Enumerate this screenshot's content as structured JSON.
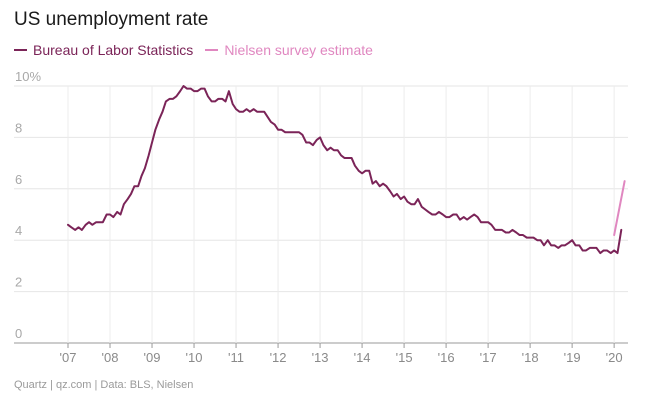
{
  "chart_data": {
    "type": "line",
    "title": "US unemployment rate",
    "y_unit_suffix": "%",
    "ylim": [
      0,
      10
    ],
    "y_ticks": [
      0,
      2,
      4,
      6,
      8,
      10
    ],
    "y_tick_labels": [
      "0",
      "2",
      "4",
      "6",
      "8",
      "10%"
    ],
    "x_range": [
      2006.5,
      2020.33
    ],
    "x_tick_values": [
      2007,
      2008,
      2009,
      2010,
      2011,
      2012,
      2013,
      2014,
      2015,
      2016,
      2017,
      2018,
      2019,
      2020
    ],
    "x_tick_labels": [
      "'07",
      "'08",
      "'09",
      "'10",
      "'11",
      "'12",
      "'13",
      "'14",
      "'15",
      "'16",
      "'17",
      "'18",
      "'19",
      "'20"
    ],
    "grid": true,
    "legend_position": "top-left",
    "series": [
      {
        "name": "Bureau of Labor Statistics",
        "color": "#7b2458",
        "points": [
          [
            2007.0,
            4.6
          ],
          [
            2007.08,
            4.5
          ],
          [
            2007.17,
            4.4
          ],
          [
            2007.25,
            4.5
          ],
          [
            2007.33,
            4.4
          ],
          [
            2007.42,
            4.6
          ],
          [
            2007.5,
            4.7
          ],
          [
            2007.58,
            4.6
          ],
          [
            2007.67,
            4.7
          ],
          [
            2007.75,
            4.7
          ],
          [
            2007.83,
            4.7
          ],
          [
            2007.92,
            5.0
          ],
          [
            2008.0,
            5.0
          ],
          [
            2008.08,
            4.9
          ],
          [
            2008.17,
            5.1
          ],
          [
            2008.25,
            5.0
          ],
          [
            2008.33,
            5.4
          ],
          [
            2008.42,
            5.6
          ],
          [
            2008.5,
            5.8
          ],
          [
            2008.58,
            6.1
          ],
          [
            2008.67,
            6.1
          ],
          [
            2008.75,
            6.5
          ],
          [
            2008.83,
            6.8
          ],
          [
            2008.92,
            7.3
          ],
          [
            2009.0,
            7.8
          ],
          [
            2009.08,
            8.3
          ],
          [
            2009.17,
            8.7
          ],
          [
            2009.25,
            9.0
          ],
          [
            2009.33,
            9.4
          ],
          [
            2009.42,
            9.5
          ],
          [
            2009.5,
            9.5
          ],
          [
            2009.58,
            9.6
          ],
          [
            2009.67,
            9.8
          ],
          [
            2009.75,
            10.0
          ],
          [
            2009.83,
            9.9
          ],
          [
            2009.92,
            9.9
          ],
          [
            2010.0,
            9.8
          ],
          [
            2010.08,
            9.8
          ],
          [
            2010.17,
            9.9
          ],
          [
            2010.25,
            9.9
          ],
          [
            2010.33,
            9.6
          ],
          [
            2010.42,
            9.4
          ],
          [
            2010.5,
            9.4
          ],
          [
            2010.58,
            9.5
          ],
          [
            2010.67,
            9.5
          ],
          [
            2010.75,
            9.4
          ],
          [
            2010.83,
            9.8
          ],
          [
            2010.92,
            9.3
          ],
          [
            2011.0,
            9.1
          ],
          [
            2011.08,
            9.0
          ],
          [
            2011.17,
            9.0
          ],
          [
            2011.25,
            9.1
          ],
          [
            2011.33,
            9.0
          ],
          [
            2011.42,
            9.1
          ],
          [
            2011.5,
            9.0
          ],
          [
            2011.58,
            9.0
          ],
          [
            2011.67,
            9.0
          ],
          [
            2011.75,
            8.8
          ],
          [
            2011.83,
            8.6
          ],
          [
            2011.92,
            8.5
          ],
          [
            2012.0,
            8.3
          ],
          [
            2012.08,
            8.3
          ],
          [
            2012.17,
            8.2
          ],
          [
            2012.25,
            8.2
          ],
          [
            2012.33,
            8.2
          ],
          [
            2012.42,
            8.2
          ],
          [
            2012.5,
            8.2
          ],
          [
            2012.58,
            8.1
          ],
          [
            2012.67,
            7.8
          ],
          [
            2012.75,
            7.8
          ],
          [
            2012.83,
            7.7
          ],
          [
            2012.92,
            7.9
          ],
          [
            2013.0,
            8.0
          ],
          [
            2013.08,
            7.7
          ],
          [
            2013.17,
            7.5
          ],
          [
            2013.25,
            7.6
          ],
          [
            2013.33,
            7.5
          ],
          [
            2013.42,
            7.5
          ],
          [
            2013.5,
            7.3
          ],
          [
            2013.58,
            7.2
          ],
          [
            2013.67,
            7.2
          ],
          [
            2013.75,
            7.2
          ],
          [
            2013.83,
            6.9
          ],
          [
            2013.92,
            6.7
          ],
          [
            2014.0,
            6.6
          ],
          [
            2014.08,
            6.7
          ],
          [
            2014.17,
            6.7
          ],
          [
            2014.25,
            6.2
          ],
          [
            2014.33,
            6.3
          ],
          [
            2014.42,
            6.1
          ],
          [
            2014.5,
            6.2
          ],
          [
            2014.58,
            6.1
          ],
          [
            2014.67,
            5.9
          ],
          [
            2014.75,
            5.7
          ],
          [
            2014.83,
            5.8
          ],
          [
            2014.92,
            5.6
          ],
          [
            2015.0,
            5.7
          ],
          [
            2015.08,
            5.5
          ],
          [
            2015.17,
            5.4
          ],
          [
            2015.25,
            5.4
          ],
          [
            2015.33,
            5.6
          ],
          [
            2015.42,
            5.3
          ],
          [
            2015.5,
            5.2
          ],
          [
            2015.58,
            5.1
          ],
          [
            2015.67,
            5.0
          ],
          [
            2015.75,
            5.0
          ],
          [
            2015.83,
            5.1
          ],
          [
            2015.92,
            5.0
          ],
          [
            2016.0,
            4.9
          ],
          [
            2016.08,
            4.9
          ],
          [
            2016.17,
            5.0
          ],
          [
            2016.25,
            5.0
          ],
          [
            2016.33,
            4.8
          ],
          [
            2016.42,
            4.9
          ],
          [
            2016.5,
            4.8
          ],
          [
            2016.58,
            4.9
          ],
          [
            2016.67,
            5.0
          ],
          [
            2016.75,
            4.9
          ],
          [
            2016.83,
            4.7
          ],
          [
            2016.92,
            4.7
          ],
          [
            2017.0,
            4.7
          ],
          [
            2017.08,
            4.6
          ],
          [
            2017.17,
            4.4
          ],
          [
            2017.25,
            4.4
          ],
          [
            2017.33,
            4.4
          ],
          [
            2017.42,
            4.3
          ],
          [
            2017.5,
            4.3
          ],
          [
            2017.58,
            4.4
          ],
          [
            2017.67,
            4.3
          ],
          [
            2017.75,
            4.2
          ],
          [
            2017.83,
            4.2
          ],
          [
            2017.92,
            4.1
          ],
          [
            2018.0,
            4.1
          ],
          [
            2018.08,
            4.1
          ],
          [
            2018.17,
            4.0
          ],
          [
            2018.25,
            4.0
          ],
          [
            2018.33,
            3.8
          ],
          [
            2018.42,
            4.0
          ],
          [
            2018.5,
            3.8
          ],
          [
            2018.58,
            3.8
          ],
          [
            2018.67,
            3.7
          ],
          [
            2018.75,
            3.8
          ],
          [
            2018.83,
            3.8
          ],
          [
            2018.92,
            3.9
          ],
          [
            2019.0,
            4.0
          ],
          [
            2019.08,
            3.8
          ],
          [
            2019.17,
            3.8
          ],
          [
            2019.25,
            3.6
          ],
          [
            2019.33,
            3.6
          ],
          [
            2019.42,
            3.7
          ],
          [
            2019.5,
            3.7
          ],
          [
            2019.58,
            3.7
          ],
          [
            2019.67,
            3.5
          ],
          [
            2019.75,
            3.6
          ],
          [
            2019.83,
            3.6
          ],
          [
            2019.92,
            3.5
          ],
          [
            2020.0,
            3.6
          ],
          [
            2020.08,
            3.5
          ],
          [
            2020.17,
            4.4
          ]
        ]
      },
      {
        "name": "Nielsen survey estimate",
        "color": "#e087c0",
        "points": [
          [
            2020.0,
            4.2
          ],
          [
            2020.25,
            6.3
          ]
        ]
      }
    ]
  },
  "footer": {
    "credit": "Quartz | qz.com | Data: BLS, Nielsen"
  }
}
